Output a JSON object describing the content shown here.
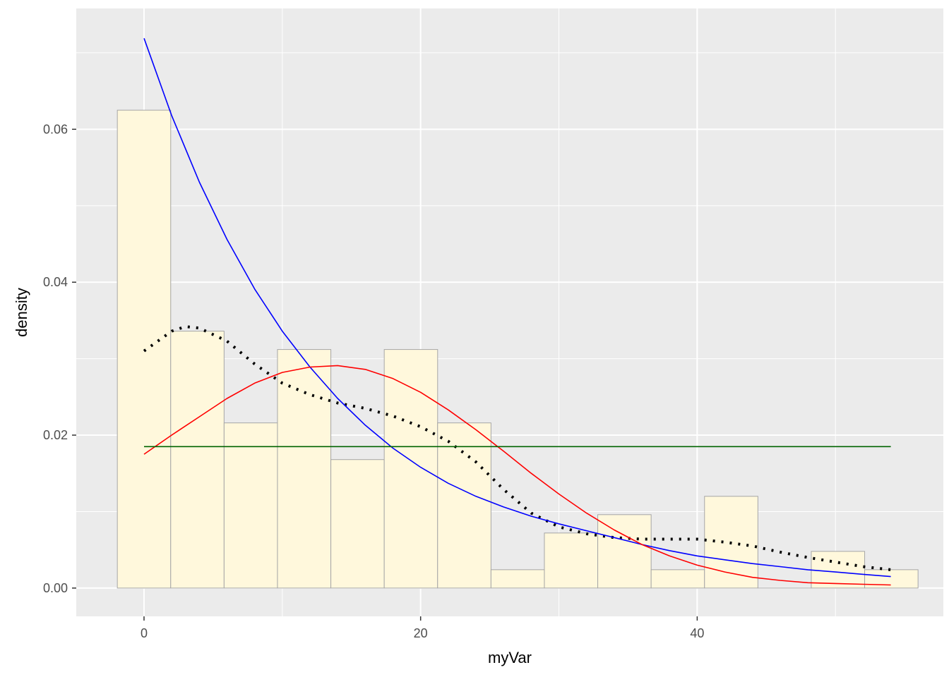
{
  "chart_data": {
    "type": "bar",
    "title": "",
    "xlabel": "myVar",
    "ylabel": "density",
    "xlim": [
      -4.9,
      57.8
    ],
    "ylim": [
      -0.0037,
      0.0758
    ],
    "x_ticks": [
      0,
      20,
      40
    ],
    "x_tick_labels": [
      "0",
      "20",
      "40"
    ],
    "y_ticks": [
      0.0,
      0.02,
      0.04,
      0.06
    ],
    "y_tick_labels": [
      "0.00",
      "0.02",
      "0.04",
      "0.06"
    ],
    "grid": true,
    "panel_background": "#ebebeb",
    "bar_fill": "#fff8dc",
    "bar_stroke": "#a6a6a6",
    "bins": {
      "left_edges": [
        -1.93,
        1.93,
        5.79,
        9.65,
        13.51,
        17.37,
        21.23,
        25.09,
        28.95,
        32.81,
        36.67,
        40.53,
        44.39,
        48.25,
        52.11
      ],
      "width": 3.86,
      "density": [
        0.0625,
        0.0336,
        0.0216,
        0.0312,
        0.0168,
        0.0312,
        0.0216,
        0.0024,
        0.0072,
        0.0096,
        0.0024,
        0.012,
        0.0,
        0.0048,
        0.0024
      ]
    },
    "series": [
      {
        "style": "dotted",
        "color": "#000000",
        "x": [
          0,
          2,
          3,
          4,
          6,
          8,
          10,
          12,
          14,
          16,
          18,
          20,
          22,
          24,
          26,
          28,
          30,
          32,
          34,
          36,
          38,
          40,
          42,
          44,
          46,
          48,
          50,
          52,
          54
        ],
        "values": [
          0.031,
          0.0336,
          0.0342,
          0.034,
          0.0323,
          0.0293,
          0.0268,
          0.0253,
          0.0242,
          0.0235,
          0.0225,
          0.0211,
          0.0192,
          0.0165,
          0.0129,
          0.0098,
          0.008,
          0.0071,
          0.0066,
          0.0064,
          0.0064,
          0.0064,
          0.006,
          0.0055,
          0.0047,
          0.004,
          0.0034,
          0.0028,
          0.0024
        ]
      },
      {
        "style": "solid",
        "color": "#0000ff",
        "x": [
          0,
          2,
          4,
          6,
          8,
          10,
          12,
          14,
          16,
          18,
          20,
          22,
          24,
          26,
          28,
          30,
          32,
          34,
          36,
          38,
          40,
          42,
          44,
          46,
          48,
          50,
          52,
          54
        ],
        "values": [
          0.0719,
          0.0618,
          0.0531,
          0.0456,
          0.0391,
          0.0336,
          0.0289,
          0.0248,
          0.0213,
          0.0183,
          0.0158,
          0.0137,
          0.012,
          0.0106,
          0.0094,
          0.0084,
          0.0075,
          0.0066,
          0.0057,
          0.0049,
          0.0042,
          0.0037,
          0.0032,
          0.0028,
          0.0024,
          0.0021,
          0.0018,
          0.0015
        ]
      },
      {
        "style": "solid",
        "color": "#ff0000",
        "x": [
          0,
          2,
          4,
          6,
          8,
          10,
          12,
          14,
          16,
          18,
          20,
          22,
          24,
          26,
          28,
          30,
          32,
          34,
          36,
          38,
          40,
          42,
          44,
          46,
          48,
          50,
          52,
          54
        ],
        "values": [
          0.0175,
          0.02,
          0.0224,
          0.0248,
          0.0268,
          0.0282,
          0.0289,
          0.0291,
          0.0286,
          0.0274,
          0.0256,
          0.0233,
          0.0207,
          0.0179,
          0.015,
          0.0123,
          0.0098,
          0.0076,
          0.0057,
          0.0042,
          0.003,
          0.0021,
          0.0014,
          0.001,
          0.0007,
          0.0006,
          0.0005,
          0.0004
        ]
      },
      {
        "style": "solid",
        "color": "#006400",
        "x": [
          0,
          54
        ],
        "values": [
          0.0185,
          0.0185
        ]
      }
    ]
  }
}
